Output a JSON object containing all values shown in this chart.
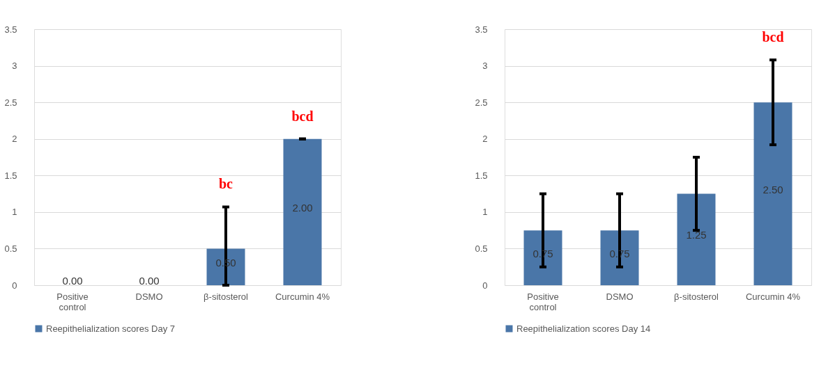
{
  "chart_data": [
    {
      "type": "bar",
      "categories": [
        "Positive control",
        "DSMO",
        "β-sitosterol",
        "Curcumin 4%"
      ],
      "series": [
        {
          "name": "Reepithelialization  scores Day 7",
          "color": "#4a76a8",
          "values": [
            0,
            0,
            0.5,
            2
          ],
          "errors": [
            null,
            null,
            [
              0,
              1.07
            ],
            0
          ],
          "value_labels": [
            "0.00",
            "0.00",
            "0.50",
            "2.00"
          ]
        }
      ],
      "ylim": [
        0,
        3.5
      ],
      "yticks": [
        0,
        0.5,
        1,
        1.5,
        2,
        2.5,
        3,
        3.5
      ],
      "grid": "y",
      "legend": "bottom",
      "annotations": [
        {
          "text": "bc",
          "x": "β-sitosterol",
          "y": 1.07
        },
        {
          "text": "bcd",
          "x": "Curcumin 4%",
          "y": 2
        }
      ]
    },
    {
      "type": "bar",
      "categories": [
        "Positive control",
        "DSMO",
        "β-sitosterol",
        "Curcumin 4%"
      ],
      "series": [
        {
          "name": "Reepithelialization  scores Day 14",
          "color": "#4a76a8",
          "values": [
            0.75,
            0.75,
            1.25,
            2.5
          ],
          "errors": [
            0.5,
            0.5,
            0.5,
            0.58
          ],
          "value_labels": [
            "0.75",
            "0.75",
            "1.25",
            "2.50"
          ]
        }
      ],
      "ylim": [
        0,
        3.5
      ],
      "yticks": [
        0,
        0.5,
        1,
        1.5,
        2,
        2.5,
        3,
        3.5
      ],
      "grid": "y",
      "legend": "bottom",
      "annotations": [
        {
          "text": "bcd",
          "x": "Curcumin 4%",
          "y": 3.08
        }
      ]
    }
  ]
}
